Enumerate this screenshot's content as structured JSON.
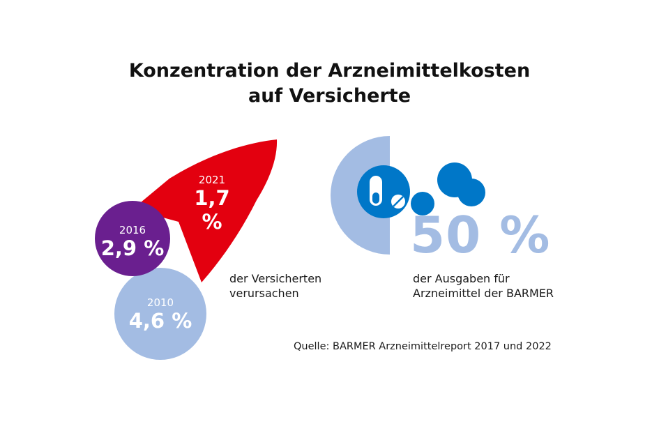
{
  "title": {
    "line1": "Konzentration der Arzneimittelkosten",
    "line2": "auf Versicherte"
  },
  "bubbles": [
    {
      "year": "2021",
      "value": "1,7 %",
      "color": "#e3000f"
    },
    {
      "year": "2016",
      "value": "2,9 %",
      "color": "#6a1f8f"
    },
    {
      "year": "2010",
      "value": "4,6 %",
      "color": "#a3bce3"
    }
  ],
  "left_caption": {
    "line1": "der Versicherten",
    "line2": "verursachen"
  },
  "right_stat": {
    "value": "50 %",
    "color": "#a3bce3",
    "accent": "#0077c8"
  },
  "right_caption": {
    "line1": "der Ausgaben für",
    "line2": "Arzneimittel der BARMER"
  },
  "source": "Quelle: BARMER Arzneimittelreport 2017 und 2022"
}
